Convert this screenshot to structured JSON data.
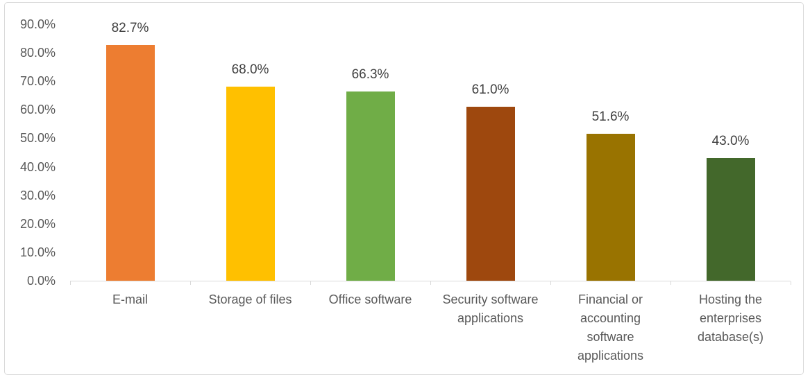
{
  "chart_data": {
    "type": "bar",
    "categories": [
      "E-mail",
      "Storage of files",
      "Office software",
      "Security software applications",
      "Financial or accounting software applications",
      "Hosting the enterprises database(s)"
    ],
    "values": [
      82.7,
      68.0,
      66.3,
      61.0,
      51.6,
      43.0
    ],
    "data_labels": [
      "82.7%",
      "68.0%",
      "66.3%",
      "61.0%",
      "51.6%",
      "43.0%"
    ],
    "bar_colors": [
      "#ED7D31",
      "#FFC000",
      "#70AD47",
      "#9E480E",
      "#997300",
      "#43682B"
    ],
    "title": "",
    "xlabel": "",
    "ylabel": "",
    "ylim": [
      0,
      90
    ],
    "ytick_interval": 10,
    "ytick_labels": [
      "0.0%",
      "10.0%",
      "20.0%",
      "30.0%",
      "40.0%",
      "50.0%",
      "60.0%",
      "70.0%",
      "80.0%",
      "90.0%"
    ],
    "grid": false,
    "legend": false
  },
  "style": {
    "axis_line_color": "#D9D9D9",
    "frame_border_color": "#D9D9D9",
    "tick_label_color": "#595959",
    "data_label_color": "#404040",
    "background_color": "#FFFFFF"
  }
}
